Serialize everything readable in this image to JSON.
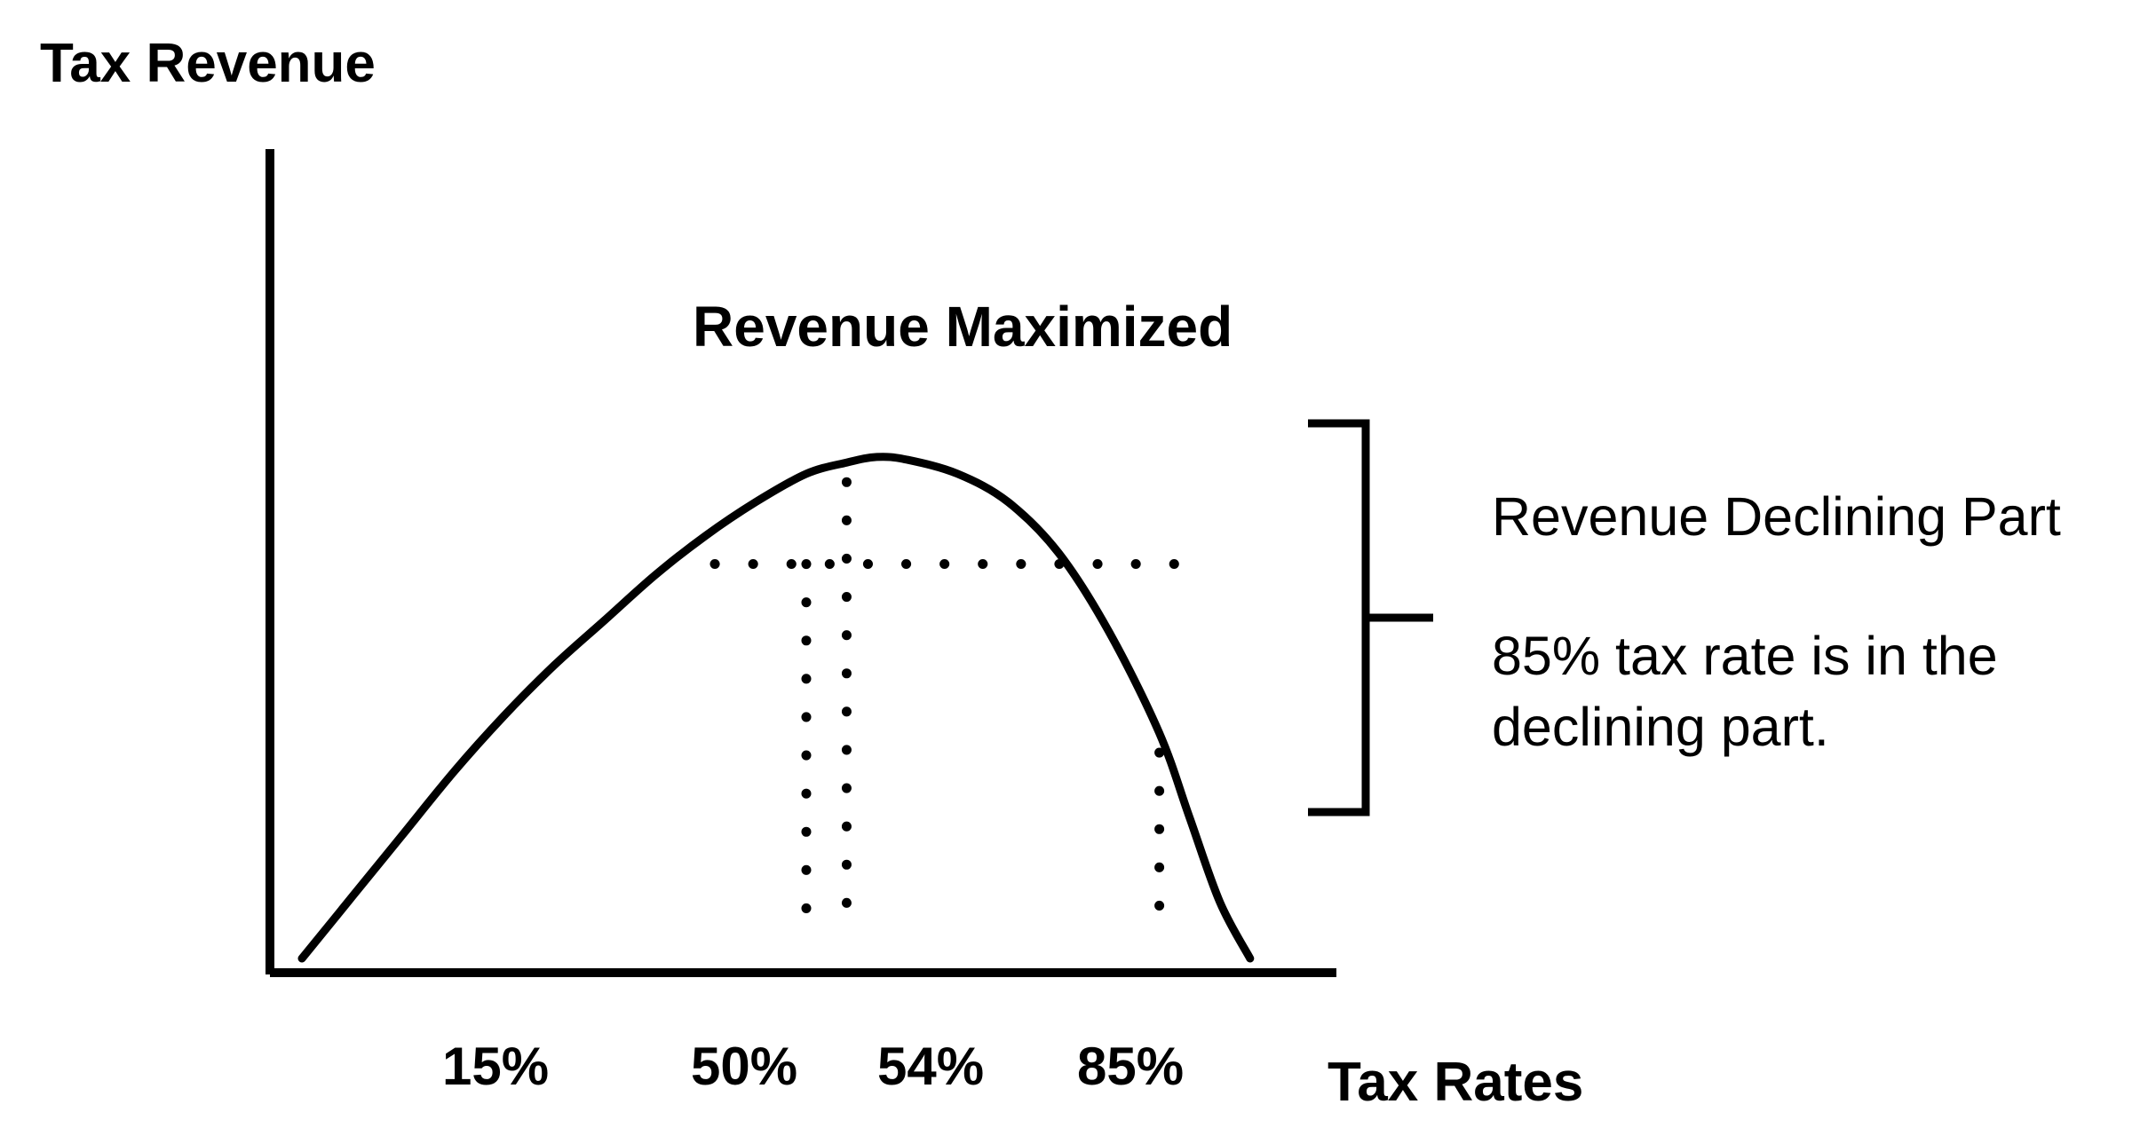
{
  "chart_data": {
    "type": "line",
    "title": "",
    "xlabel": "Tax Rates",
    "ylabel": "Tax Revenue",
    "grid": false,
    "legend": "none",
    "curve": {
      "description_free": true,
      "x": [
        0,
        5,
        10,
        15,
        20,
        25,
        30,
        35,
        40,
        45,
        50,
        54,
        57,
        60,
        65,
        70,
        75,
        80,
        85,
        88,
        91,
        94
      ],
      "y": [
        0,
        11,
        22,
        33,
        43,
        52,
        60,
        68,
        75,
        81,
        86,
        88,
        89,
        88.5,
        86,
        81,
        72,
        58,
        40,
        25,
        10,
        0
      ]
    },
    "tick_labels": [
      "15%",
      "50%",
      "54%",
      "85%"
    ],
    "reference_lines": [
      {
        "x": 50,
        "label": "50%"
      },
      {
        "x": 54,
        "label": "54%"
      },
      {
        "x": 85,
        "label": "85%"
      }
    ],
    "horizontal_reference": {
      "y": 70
    },
    "annotations": {
      "peak": "Revenue Maximized",
      "bracket_title": "Revenue Declining Part",
      "bracket_note_line1": "85% tax rate is in the",
      "bracket_note_line2": "declining part."
    }
  },
  "colors": {
    "ink": "#000000",
    "background": "#ffffff"
  }
}
